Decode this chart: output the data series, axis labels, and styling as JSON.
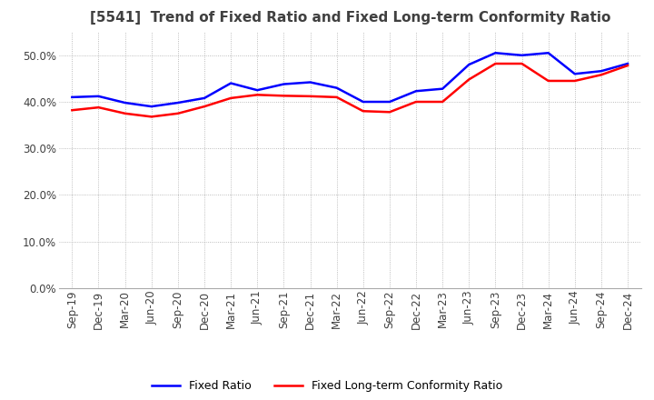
{
  "title": "[5541]  Trend of Fixed Ratio and Fixed Long-term Conformity Ratio",
  "x_labels": [
    "Sep-19",
    "Dec-19",
    "Mar-20",
    "Jun-20",
    "Sep-20",
    "Dec-20",
    "Mar-21",
    "Jun-21",
    "Sep-21",
    "Dec-21",
    "Mar-22",
    "Jun-22",
    "Sep-22",
    "Dec-22",
    "Mar-23",
    "Jun-23",
    "Sep-23",
    "Dec-23",
    "Mar-24",
    "Jun-24",
    "Sep-24",
    "Dec-24"
  ],
  "fixed_ratio": [
    0.41,
    0.412,
    0.398,
    0.39,
    0.398,
    0.408,
    0.44,
    0.425,
    0.438,
    0.442,
    0.43,
    0.4,
    0.4,
    0.423,
    0.428,
    0.48,
    0.505,
    0.5,
    0.505,
    0.46,
    0.466,
    0.482
  ],
  "fixed_lt_ratio": [
    0.382,
    0.388,
    0.375,
    0.368,
    0.375,
    0.39,
    0.408,
    0.415,
    0.413,
    0.412,
    0.41,
    0.38,
    0.378,
    0.4,
    0.4,
    0.448,
    0.482,
    0.482,
    0.445,
    0.445,
    0.458,
    0.478
  ],
  "fixed_ratio_color": "#0000FF",
  "fixed_lt_ratio_color": "#FF0000",
  "ylim": [
    0.0,
    0.55
  ],
  "yticks": [
    0.0,
    0.1,
    0.2,
    0.3,
    0.4,
    0.5
  ],
  "background_color": "#FFFFFF",
  "grid_color": "#AAAAAA",
  "title_fontsize": 11,
  "title_color": "#404040",
  "legend_fixed": "Fixed Ratio",
  "legend_fixed_lt": "Fixed Long-term Conformity Ratio",
  "tick_label_color": "#404040",
  "tick_fontsize": 8.5
}
